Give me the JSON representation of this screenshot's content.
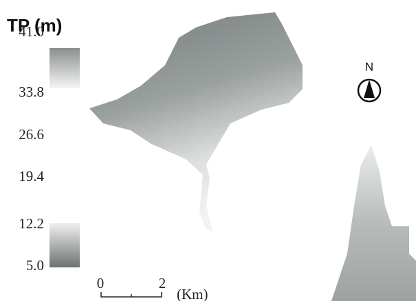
{
  "title": "TP (m)",
  "legend": {
    "labels": [
      "41.0",
      "33.8",
      "26.6",
      "19.4",
      "12.2",
      "5.0"
    ]
  },
  "scale_bar": {
    "start": "0",
    "end": "2",
    "unit": "(Km)"
  },
  "north_arrow": "N"
}
